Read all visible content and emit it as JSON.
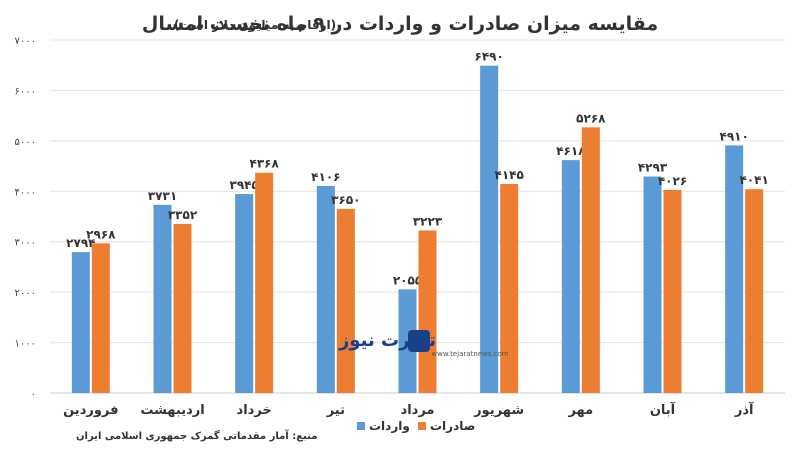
{
  "chart_data": {
    "type": "bar",
    "title": "مقایسه میزان صادرات و واردات در ۹ ماه نخست امسال",
    "subtitle": "(ارقام به میلیون دلار است)",
    "categories": [
      "فروردین",
      "اردیبهشت",
      "خرداد",
      "تیر",
      "مرداد",
      "شهریور",
      "مهر",
      "آبان",
      "آذر"
    ],
    "series": [
      {
        "name": "واردات",
        "color": "#5b9bd5",
        "values": [
          2794,
          3731,
          3945,
          4106,
          2055,
          6490,
          4618,
          4293,
          4910
        ],
        "labels": [
          "۲۷۹۴",
          "۳۷۳۱",
          "۳۹۴۵",
          "۴۱۰۶",
          "۲۰۵۵",
          "۶۴۹۰",
          "۴۶۱۸",
          "۴۲۹۳",
          "۴۹۱۰"
        ]
      },
      {
        "name": "صادرات",
        "color": "#ed7d31",
        "values": [
          2968,
          3352,
          4368,
          3650,
          3223,
          4145,
          5268,
          4026,
          4041
        ],
        "labels": [
          "۲۹۶۸",
          "۳۳۵۲",
          "۴۳۶۸",
          "۳۶۵۰",
          "۳۲۲۳",
          "۴۱۴۵",
          "۵۲۶۸",
          "۴۰۲۶",
          "۴۰۴۱"
        ]
      }
    ],
    "ylim": [
      0,
      7000
    ],
    "yticks": [
      0,
      1000,
      2000,
      3000,
      4000,
      5000,
      6000,
      7000
    ],
    "ytick_labels": [
      "۰",
      "۱۰۰۰",
      "۲۰۰۰",
      "۳۰۰۰",
      "۴۰۰۰",
      "۵۰۰۰",
      "۶۰۰۰",
      "۷۰۰۰"
    ],
    "grid": true,
    "legend": "bottom-right",
    "source": "منبع: آمار مقدماتی گمرک جمهوری اسلامی ایران"
  },
  "watermark": {
    "name": "تجارت نیوز",
    "url": "www.tejaratnews.com"
  }
}
